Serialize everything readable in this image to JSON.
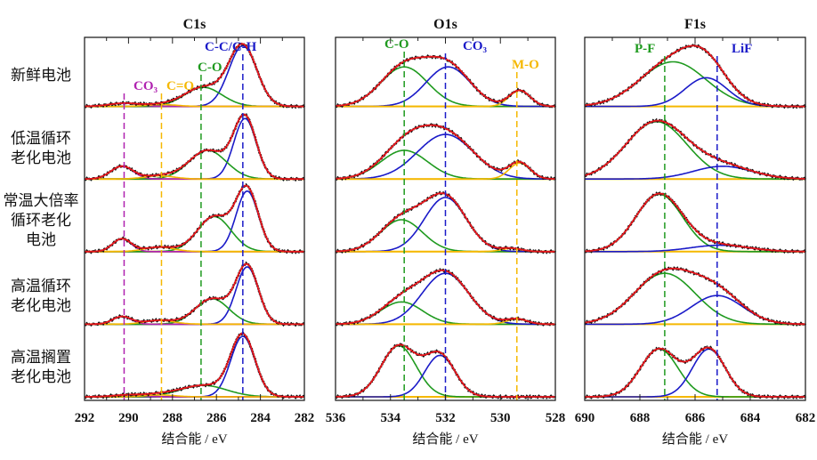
{
  "row_labels": [
    "新鲜电池",
    "低温循环\n老化电池",
    "常温大倍率\n循环老化\n电池",
    "高温循环\n老化电池",
    "高温搁置\n老化电池"
  ],
  "colors": {
    "fit": "#e8151b",
    "data": "#111111",
    "green": "#1f9a1f",
    "blue": "#1a1ac8",
    "orange": "#f5b800",
    "magenta": "#b022b0"
  },
  "chart_data": [
    {
      "type": "line",
      "title": "C1s",
      "xlabel": "结合能 / eV",
      "xlim": [
        292,
        282
      ],
      "xticks": [
        292,
        290,
        288,
        286,
        284,
        282
      ],
      "reference_lines": [
        {
          "label": "CO₃",
          "x": 290.2,
          "color": "#b022b0"
        },
        {
          "label": "C=O",
          "x": 288.5,
          "color": "#f5b800"
        },
        {
          "label": "C-O",
          "x": 286.7,
          "color": "#1f9a1f"
        },
        {
          "label": "C-C/C-H",
          "x": 284.8,
          "color": "#1a1ac8"
        }
      ],
      "spectra": [
        {
          "peaks": [
            {
              "name": "C-C/C-H",
              "center": 284.8,
              "height": 0.95,
              "fwhm": 1.5
            },
            {
              "name": "C-O",
              "center": 286.6,
              "height": 0.3,
              "fwhm": 2.0
            },
            {
              "name": "CO₃",
              "center": 290.2,
              "height": 0.05,
              "fwhm": 1.6
            },
            {
              "name": "C=O",
              "center": 288.5,
              "height": 0.03,
              "fwhm": 1.6
            }
          ]
        },
        {
          "peaks": [
            {
              "name": "C-C/C-H",
              "center": 284.7,
              "height": 0.95,
              "fwhm": 1.2
            },
            {
              "name": "C-O",
              "center": 286.4,
              "height": 0.45,
              "fwhm": 2.0
            },
            {
              "name": "CO₃",
              "center": 290.3,
              "height": 0.2,
              "fwhm": 1.2
            },
            {
              "name": "C=O",
              "center": 288.6,
              "height": 0.05,
              "fwhm": 1.6
            }
          ]
        },
        {
          "peaks": [
            {
              "name": "C-C/C-H",
              "center": 284.6,
              "height": 0.95,
              "fwhm": 1.2
            },
            {
              "name": "C-O",
              "center": 286.1,
              "height": 0.55,
              "fwhm": 1.8
            },
            {
              "name": "CO₃",
              "center": 290.3,
              "height": 0.2,
              "fwhm": 1.0
            },
            {
              "name": "C=O",
              "center": 288.6,
              "height": 0.07,
              "fwhm": 1.6
            }
          ]
        },
        {
          "peaks": [
            {
              "name": "C-C/C-H",
              "center": 284.6,
              "height": 0.9,
              "fwhm": 1.2
            },
            {
              "name": "C-O",
              "center": 286.2,
              "height": 0.4,
              "fwhm": 1.8
            },
            {
              "name": "CO₃",
              "center": 290.3,
              "height": 0.12,
              "fwhm": 1.0
            },
            {
              "name": "C=O",
              "center": 288.6,
              "height": 0.06,
              "fwhm": 1.6
            }
          ]
        },
        {
          "peaks": [
            {
              "name": "C-C/C-H",
              "center": 284.8,
              "height": 0.95,
              "fwhm": 1.3
            },
            {
              "name": "C-O",
              "center": 286.6,
              "height": 0.18,
              "fwhm": 2.5
            },
            {
              "name": "CO₃",
              "center": 290.0,
              "height": 0.03,
              "fwhm": 1.6
            },
            {
              "name": "C=O",
              "center": 288.6,
              "height": 0.03,
              "fwhm": 1.6
            }
          ]
        }
      ]
    },
    {
      "type": "line",
      "title": "O1s",
      "xlabel": "结合能 / eV",
      "xlim": [
        536,
        528
      ],
      "xticks": [
        536,
        534,
        532,
        530,
        528
      ],
      "reference_lines": [
        {
          "label": "C-O",
          "x": 533.5,
          "color": "#1f9a1f"
        },
        {
          "label": "CO₃",
          "x": 532.0,
          "color": "#1a1ac8"
        },
        {
          "label": "M-O",
          "x": 529.4,
          "color": "#f5b800"
        }
      ],
      "spectra": [
        {
          "peaks": [
            {
              "name": "C-O",
              "center": 533.5,
              "height": 0.62,
              "fwhm": 2.0
            },
            {
              "name": "CO₃",
              "center": 531.9,
              "height": 0.62,
              "fwhm": 1.9
            },
            {
              "name": "M-O",
              "center": 529.3,
              "height": 0.25,
              "fwhm": 0.9
            }
          ]
        },
        {
          "peaks": [
            {
              "name": "C-O",
              "center": 533.5,
              "height": 0.45,
              "fwhm": 2.0
            },
            {
              "name": "CO₃",
              "center": 532.0,
              "height": 0.7,
              "fwhm": 2.4
            },
            {
              "name": "M-O",
              "center": 529.3,
              "height": 0.25,
              "fwhm": 0.9
            }
          ]
        },
        {
          "peaks": [
            {
              "name": "C-O",
              "center": 533.6,
              "height": 0.5,
              "fwhm": 1.8
            },
            {
              "name": "CO₃",
              "center": 532.0,
              "height": 0.85,
              "fwhm": 1.8
            },
            {
              "name": "M-O",
              "center": 529.6,
              "height": 0.05,
              "fwhm": 0.9
            }
          ]
        },
        {
          "peaks": [
            {
              "name": "C-O",
              "center": 533.6,
              "height": 0.35,
              "fwhm": 1.8
            },
            {
              "name": "CO₃",
              "center": 532.0,
              "height": 0.8,
              "fwhm": 2.0
            },
            {
              "name": "M-O",
              "center": 529.4,
              "height": 0.08,
              "fwhm": 0.9
            }
          ]
        },
        {
          "peaks": [
            {
              "name": "C-O",
              "center": 533.7,
              "height": 0.8,
              "fwhm": 1.5
            },
            {
              "name": "CO₃",
              "center": 532.2,
              "height": 0.65,
              "fwhm": 1.3
            }
          ]
        }
      ]
    },
    {
      "type": "line",
      "title": "F1s",
      "xlabel": "结合能 / eV",
      "xlim": [
        690,
        682
      ],
      "xticks": [
        690,
        688,
        686,
        684,
        682
      ],
      "reference_lines": [
        {
          "label": "P-F",
          "x": 687.1,
          "color": "#1f9a1f"
        },
        {
          "label": "LiF",
          "x": 685.2,
          "color": "#1a1ac8"
        }
      ],
      "spectra": [
        {
          "peaks": [
            {
              "name": "P-F",
              "center": 686.8,
              "height": 0.7,
              "fwhm": 2.8
            },
            {
              "name": "LiF",
              "center": 685.6,
              "height": 0.45,
              "fwhm": 1.8
            }
          ]
        },
        {
          "peaks": [
            {
              "name": "P-F",
              "center": 687.4,
              "height": 0.9,
              "fwhm": 2.6
            },
            {
              "name": "LiF",
              "center": 685.0,
              "height": 0.2,
              "fwhm": 2.5
            }
          ]
        },
        {
          "peaks": [
            {
              "name": "P-F",
              "center": 687.3,
              "height": 0.9,
              "fwhm": 2.0
            },
            {
              "name": "LiF",
              "center": 685.1,
              "height": 0.1,
              "fwhm": 2.5
            }
          ]
        },
        {
          "peaks": [
            {
              "name": "P-F",
              "center": 687.1,
              "height": 0.8,
              "fwhm": 2.6
            },
            {
              "name": "LiF",
              "center": 685.2,
              "height": 0.45,
              "fwhm": 2.2
            }
          ]
        },
        {
          "peaks": [
            {
              "name": "P-F",
              "center": 687.3,
              "height": 0.75,
              "fwhm": 1.6
            },
            {
              "name": "LiF",
              "center": 685.5,
              "height": 0.75,
              "fwhm": 1.4
            }
          ]
        }
      ]
    }
  ]
}
